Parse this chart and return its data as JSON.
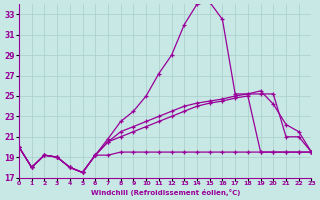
{
  "background_color": "#c8e8e5",
  "grid_color": "#aaceca",
  "line_color": "#990099",
  "xlabel": "Windchill (Refroidissement éolien,°C)",
  "xlim": [
    0,
    23
  ],
  "ylim": [
    17,
    34
  ],
  "yticks": [
    17,
    19,
    21,
    23,
    25,
    27,
    29,
    31,
    33
  ],
  "xticks": [
    0,
    1,
    2,
    3,
    4,
    5,
    6,
    7,
    8,
    9,
    10,
    11,
    12,
    13,
    14,
    15,
    16,
    17,
    18,
    19,
    20,
    21,
    22,
    23
  ],
  "curves": [
    {
      "x": [
        0,
        1,
        2,
        3,
        4,
        5,
        6,
        7,
        8,
        9,
        10,
        11,
        12,
        13,
        14,
        15,
        16,
        17,
        18,
        19,
        20,
        21,
        22,
        23
      ],
      "y": [
        20.0,
        18.0,
        19.2,
        19.0,
        18.0,
        17.5,
        19.2,
        20.8,
        22.5,
        23.5,
        25.0,
        27.2,
        29.0,
        32.0,
        34.0,
        34.2,
        32.5,
        25.2,
        25.2,
        25.2,
        25.2,
        21.0,
        21.0,
        19.5
      ]
    },
    {
      "x": [
        0,
        1,
        2,
        3,
        4,
        5,
        6,
        7,
        8,
        9,
        10,
        11,
        12,
        13,
        14,
        15,
        16,
        17,
        18,
        19,
        20,
        21,
        22,
        23
      ],
      "y": [
        20.0,
        18.0,
        19.2,
        19.0,
        18.0,
        17.5,
        19.2,
        19.2,
        19.5,
        19.5,
        19.5,
        19.5,
        19.5,
        19.5,
        19.5,
        19.5,
        19.5,
        19.5,
        19.5,
        19.5,
        19.5,
        19.5,
        19.5,
        19.5
      ]
    },
    {
      "x": [
        0,
        1,
        2,
        3,
        4,
        5,
        6,
        7,
        8,
        9,
        10,
        11,
        12,
        13,
        14,
        15,
        16,
        17,
        18,
        19,
        20,
        21,
        22,
        23
      ],
      "y": [
        20.0,
        18.0,
        19.2,
        19.0,
        18.0,
        17.5,
        19.2,
        20.5,
        21.5,
        22.0,
        22.5,
        23.0,
        23.5,
        24.0,
        24.3,
        24.5,
        24.7,
        25.0,
        25.2,
        25.5,
        24.2,
        22.2,
        21.5,
        19.5
      ]
    },
    {
      "x": [
        0,
        1,
        2,
        3,
        4,
        5,
        6,
        7,
        8,
        9,
        10,
        11,
        12,
        13,
        14,
        15,
        16,
        17,
        18,
        19,
        20,
        21,
        22,
        23
      ],
      "y": [
        20.0,
        18.0,
        19.2,
        19.0,
        18.0,
        17.5,
        19.2,
        20.5,
        21.0,
        21.5,
        22.0,
        22.5,
        23.0,
        23.5,
        24.0,
        24.3,
        24.5,
        24.8,
        25.0,
        19.5,
        19.5,
        19.5,
        19.5,
        19.5
      ]
    }
  ]
}
